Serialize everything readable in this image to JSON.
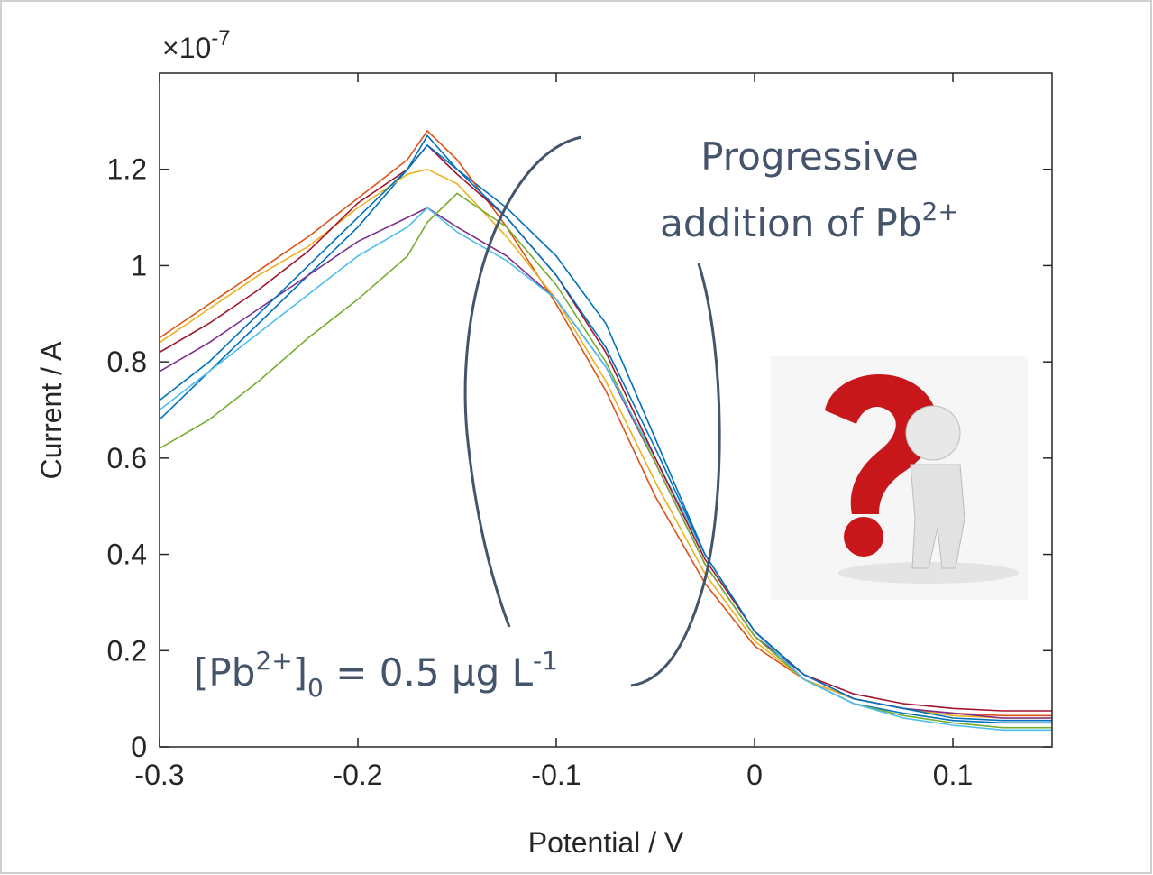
{
  "chart_data": {
    "type": "line",
    "y_multiplier": {
      "base": "×10",
      "exponent": "-7"
    },
    "xlabel": "Potential / V",
    "ylabel": "Current / A",
    "annotation_top": {
      "line1": "Progressive",
      "line2": "addition of Pb",
      "sup": "2+"
    },
    "annotation_bottom": {
      "open": "[Pb",
      "sup1": "2+",
      "close": "]",
      "sub": "0",
      "middle": " = 0.5 µg L",
      "sup2": "-1"
    },
    "xlim": [
      -0.3,
      0.15
    ],
    "ylim": [
      0,
      1.4
    ],
    "xticks": [
      -0.3,
      -0.2,
      -0.1,
      0,
      0.1
    ],
    "yticks": [
      0,
      0.2,
      0.4,
      0.6,
      0.8,
      1,
      1.2
    ],
    "x": [
      -0.3,
      -0.275,
      -0.25,
      -0.225,
      -0.2,
      -0.175,
      -0.165,
      -0.15,
      -0.125,
      -0.1,
      -0.075,
      -0.05,
      -0.025,
      0,
      0.025,
      0.05,
      0.075,
      0.1,
      0.125,
      0.15
    ],
    "series": [
      {
        "color": "#0072BD",
        "values": [
          0.68,
          0.78,
          0.88,
          0.98,
          1.08,
          1.2,
          1.27,
          1.2,
          1.12,
          1.02,
          0.88,
          0.64,
          0.4,
          0.24,
          0.14,
          0.09,
          0.07,
          0.055,
          0.05,
          0.05
        ]
      },
      {
        "color": "#D95319",
        "values": [
          0.85,
          0.92,
          0.99,
          1.06,
          1.14,
          1.22,
          1.28,
          1.22,
          1.08,
          0.92,
          0.74,
          0.52,
          0.34,
          0.21,
          0.14,
          0.1,
          0.08,
          0.07,
          0.065,
          0.065
        ]
      },
      {
        "color": "#EDB120",
        "values": [
          0.84,
          0.91,
          0.98,
          1.04,
          1.12,
          1.19,
          1.2,
          1.17,
          1.06,
          0.93,
          0.76,
          0.55,
          0.36,
          0.22,
          0.14,
          0.1,
          0.08,
          0.065,
          0.06,
          0.06
        ]
      },
      {
        "color": "#7E2F8E",
        "values": [
          0.78,
          0.84,
          0.91,
          0.98,
          1.05,
          1.1,
          1.12,
          1.08,
          1.02,
          0.93,
          0.79,
          0.59,
          0.38,
          0.23,
          0.15,
          0.1,
          0.08,
          0.07,
          0.06,
          0.06
        ]
      },
      {
        "color": "#77AC30",
        "values": [
          0.62,
          0.68,
          0.76,
          0.85,
          0.93,
          1.02,
          1.09,
          1.15,
          1.08,
          0.96,
          0.8,
          0.59,
          0.38,
          0.23,
          0.14,
          0.09,
          0.065,
          0.05,
          0.04,
          0.04
        ]
      },
      {
        "color": "#4DBEEE",
        "values": [
          0.7,
          0.78,
          0.86,
          0.94,
          1.02,
          1.08,
          1.12,
          1.07,
          1.01,
          0.93,
          0.79,
          0.6,
          0.4,
          0.24,
          0.14,
          0.09,
          0.06,
          0.045,
          0.035,
          0.035
        ]
      },
      {
        "color": "#A2142F",
        "values": [
          0.82,
          0.88,
          0.95,
          1.03,
          1.13,
          1.2,
          1.25,
          1.19,
          1.1,
          0.98,
          0.82,
          0.6,
          0.39,
          0.24,
          0.15,
          0.11,
          0.09,
          0.08,
          0.075,
          0.075
        ]
      },
      {
        "color": "#0072BD",
        "values": [
          0.72,
          0.8,
          0.9,
          1.0,
          1.1,
          1.2,
          1.25,
          1.2,
          1.1,
          0.98,
          0.83,
          0.62,
          0.4,
          0.24,
          0.15,
          0.1,
          0.08,
          0.06,
          0.055,
          0.055
        ]
      }
    ],
    "box": true
  }
}
